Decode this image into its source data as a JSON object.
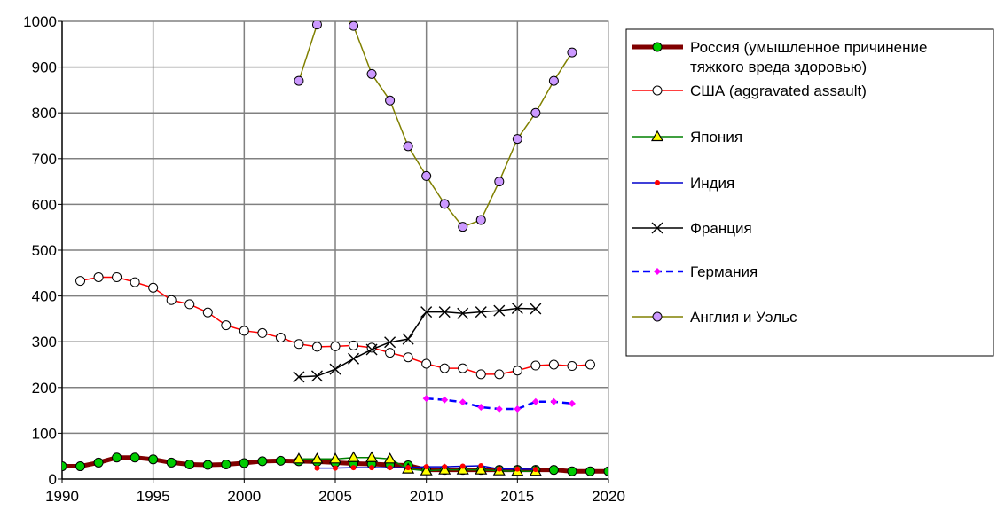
{
  "chart_data": {
    "type": "line",
    "title": "",
    "xlabel": "",
    "ylabel": "",
    "xlim": [
      1990,
      2020
    ],
    "ylim": [
      0,
      1000
    ],
    "xticks": [
      1990,
      1995,
      2000,
      2005,
      2010,
      2015,
      2020
    ],
    "yticks": [
      0,
      100,
      200,
      300,
      400,
      500,
      600,
      700,
      800,
      900,
      1000
    ],
    "grid": true,
    "legend_position": "right",
    "series": [
      {
        "name": "Россия (умышленное причинение тяжкого вреда здоровью)",
        "legend_lines": [
          "Россия (умышленное причинение",
          "тяжкого вреда здоровью)"
        ],
        "color": "#800000",
        "marker": "circle",
        "marker_fill": "#00cc00",
        "line_width": 5,
        "dash": "",
        "x": [
          1990,
          1991,
          1992,
          1993,
          1994,
          1995,
          1996,
          1997,
          1998,
          1999,
          2000,
          2001,
          2002,
          2003,
          2004,
          2005,
          2006,
          2007,
          2008,
          2009,
          2010,
          2011,
          2012,
          2013,
          2014,
          2015,
          2016,
          2017,
          2018,
          2019,
          2020
        ],
        "y": [
          28,
          28,
          36,
          47,
          47,
          43,
          36,
          32,
          31,
          32,
          35,
          39,
          40,
          39,
          38,
          36,
          34,
          33,
          31,
          30,
          20,
          20,
          20,
          20,
          20,
          20,
          20,
          20,
          17,
          17,
          17
        ]
      },
      {
        "name": "США (aggravated assault)",
        "legend_lines": [
          "США (aggravated assault)"
        ],
        "color": "#ff0000",
        "marker": "circle",
        "marker_fill": "#ffffff",
        "line_width": 1.5,
        "dash": "",
        "x": [
          1991,
          1992,
          1993,
          1994,
          1995,
          1996,
          1997,
          1998,
          1999,
          2000,
          2001,
          2002,
          2003,
          2004,
          2005,
          2006,
          2007,
          2008,
          2009,
          2010,
          2011,
          2012,
          2013,
          2014,
          2015,
          2016,
          2017,
          2018,
          2019
        ],
        "y": [
          433,
          441,
          441,
          430,
          418,
          391,
          382,
          364,
          336,
          324,
          319,
          309,
          295,
          289,
          290,
          292,
          287,
          276,
          266,
          252,
          242,
          242,
          229,
          229,
          237,
          248,
          250,
          247,
          250
        ]
      },
      {
        "name": "Япония",
        "legend_lines": [
          "Япония"
        ],
        "color": "#008000",
        "marker": "triangle",
        "marker_fill": "#ffff00",
        "line_width": 1.5,
        "dash": "",
        "x": [
          2003,
          2004,
          2005,
          2006,
          2007,
          2008,
          2009,
          2010,
          2011,
          2012,
          2013,
          2014,
          2015,
          2016
        ],
        "y": [
          44,
          44,
          44,
          47,
          47,
          44,
          22,
          18,
          20,
          20,
          20,
          18,
          17,
          17
        ]
      },
      {
        "name": "Индия",
        "legend_lines": [
          "Индия"
        ],
        "color": "#0000cc",
        "marker": "dot",
        "marker_fill": "#ff0000",
        "line_width": 1.5,
        "dash": "",
        "x": [
          2004,
          2005,
          2006,
          2007,
          2008,
          2009,
          2010,
          2011,
          2012,
          2013,
          2014,
          2015,
          2016
        ],
        "y": [
          24,
          24,
          25,
          25,
          25,
          25,
          27,
          27,
          28,
          29,
          22,
          22,
          21
        ]
      },
      {
        "name": "Франция",
        "legend_lines": [
          "Франция"
        ],
        "color": "#000000",
        "marker": "x",
        "marker_fill": "none",
        "line_width": 1.5,
        "dash": "",
        "x": [
          2003,
          2004,
          2005,
          2006,
          2007,
          2008,
          2009,
          2010,
          2011,
          2012,
          2013,
          2014,
          2015,
          2016
        ],
        "y": [
          223,
          225,
          240,
          263,
          283,
          299,
          306,
          365,
          365,
          362,
          365,
          368,
          373,
          372
        ]
      },
      {
        "name": "Германия",
        "legend_lines": [
          "Германия"
        ],
        "color": "#0000ff",
        "marker": "diamond",
        "marker_fill": "#ff00ff",
        "line_width": 2.5,
        "dash": "8 5",
        "x": [
          2010,
          2011,
          2012,
          2013,
          2014,
          2015,
          2016,
          2017,
          2018
        ],
        "y": [
          176,
          173,
          168,
          157,
          153,
          153,
          169,
          169,
          165
        ]
      },
      {
        "name": "Англия и Уэльс",
        "legend_lines": [
          "Англия и Уэльс"
        ],
        "color": "#808000",
        "marker": "circle",
        "marker_fill": "#cc99ff",
        "line_width": 1.5,
        "dash": "",
        "x": [
          2003,
          2004,
          2005,
          2006,
          2007,
          2008,
          2009,
          2010,
          2011,
          2012,
          2013,
          2014,
          2015,
          2016,
          2017,
          2018
        ],
        "y": [
          870,
          993,
          1045,
          990,
          885,
          827,
          727,
          662,
          601,
          551,
          566,
          650,
          743,
          800,
          870,
          932
        ]
      }
    ]
  }
}
